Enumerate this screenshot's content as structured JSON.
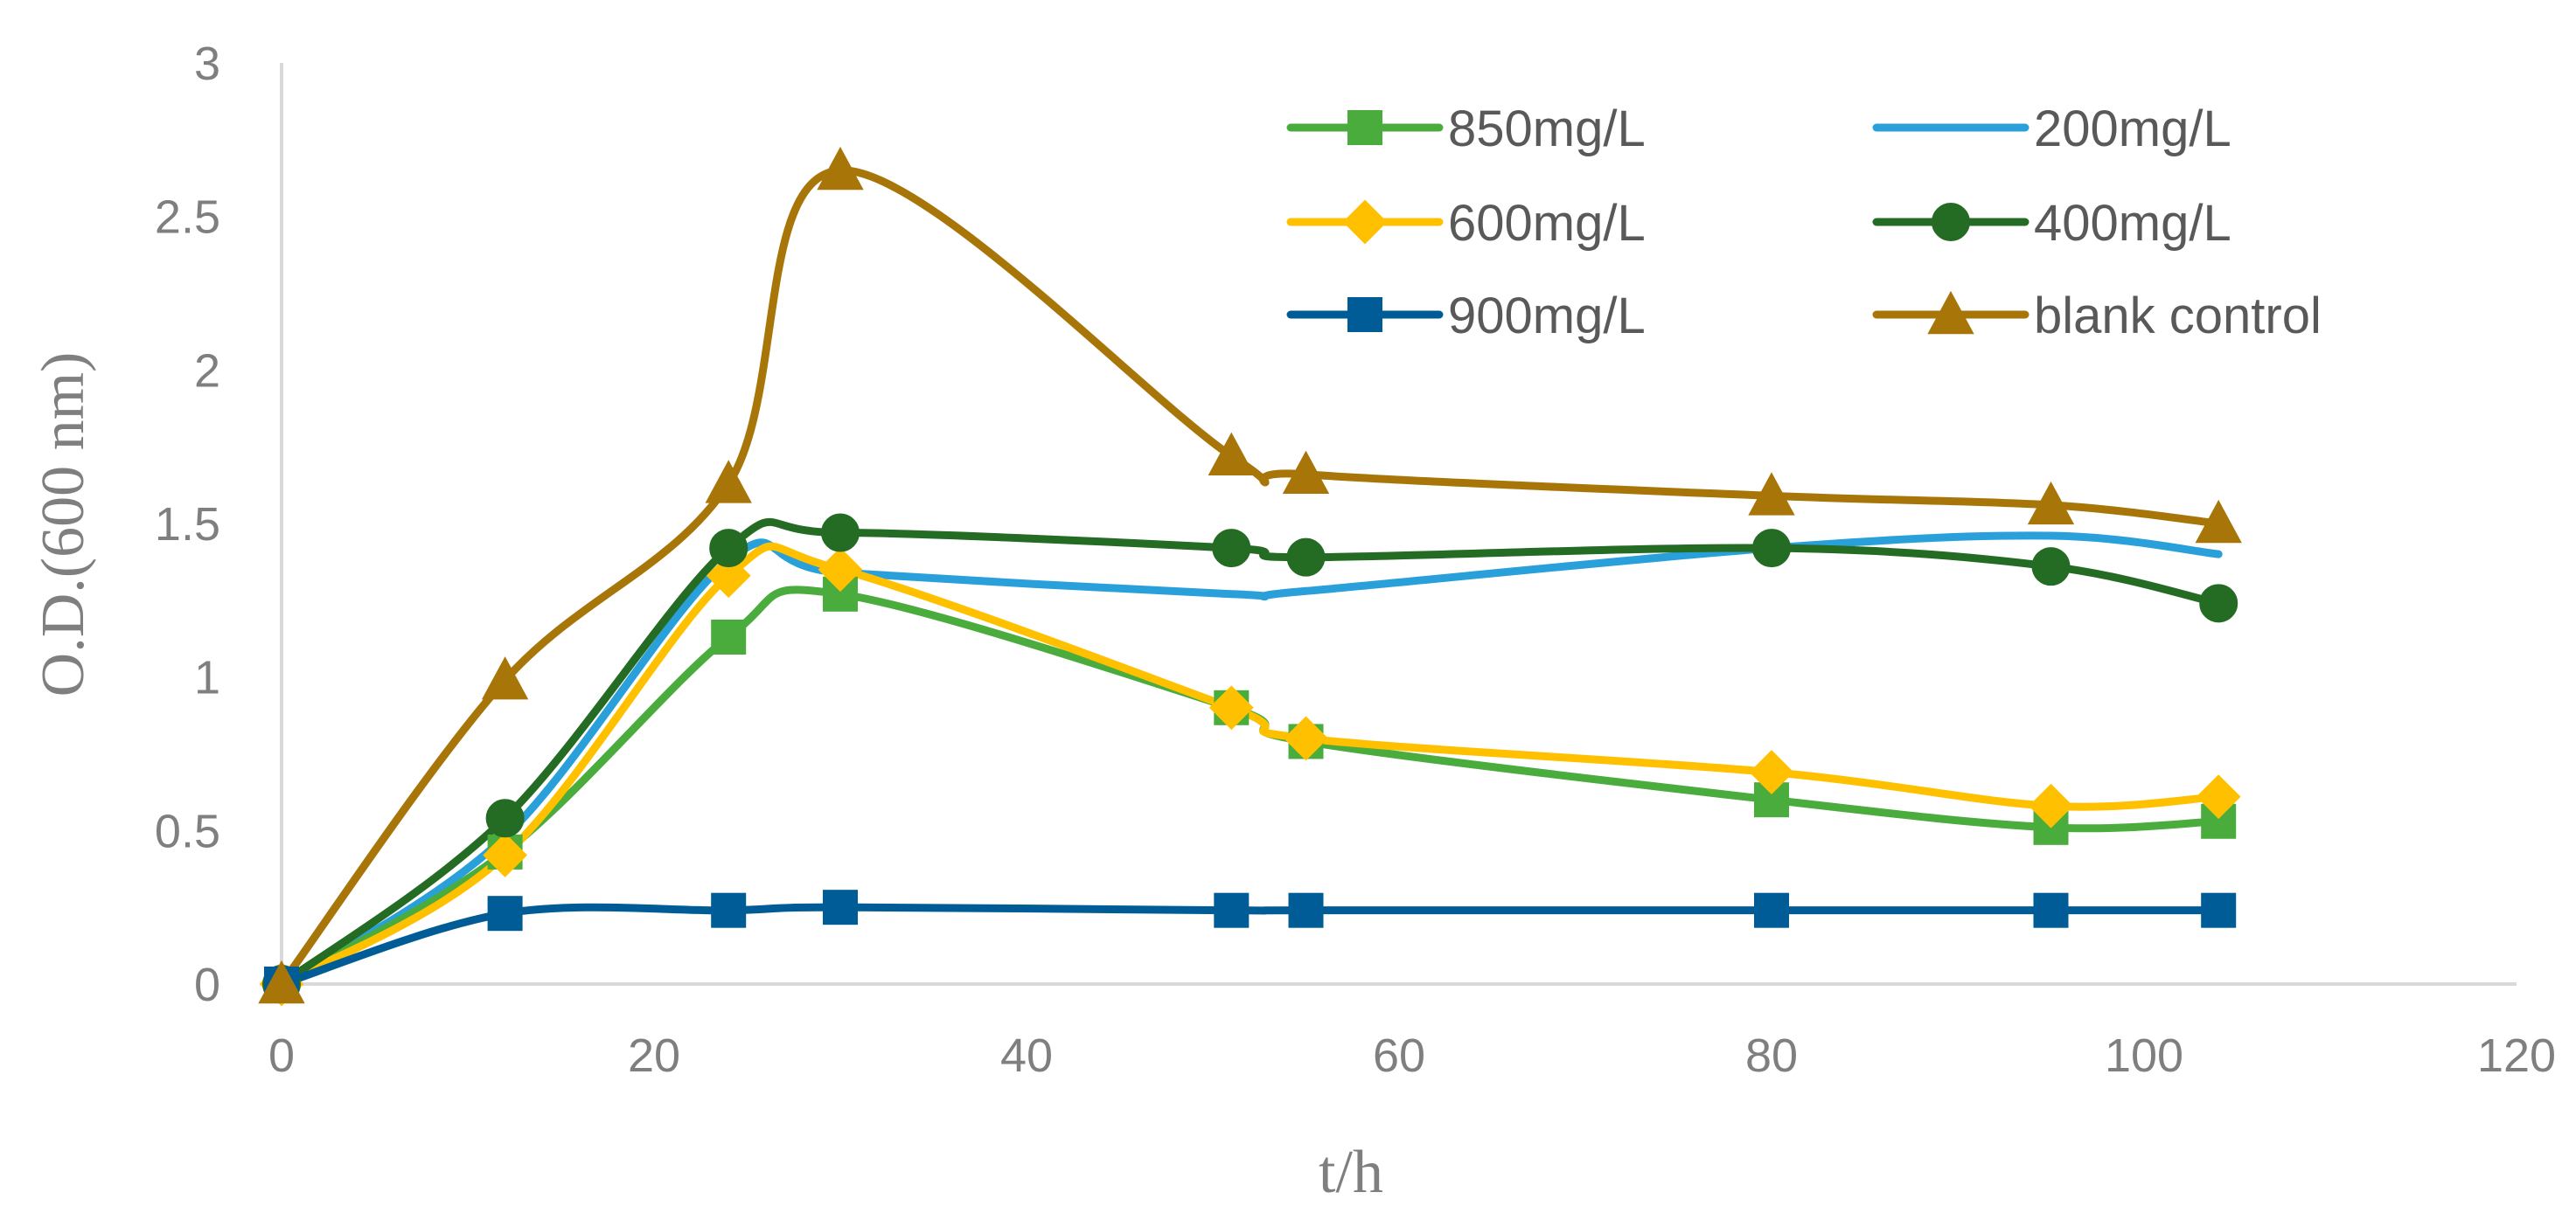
{
  "chart_data": {
    "type": "line",
    "title": "",
    "xlabel": "t/h",
    "ylabel": "O.D.(600 nm)",
    "xlim": [
      0,
      120
    ],
    "ylim": [
      0,
      3
    ],
    "x_ticks": [
      "0",
      "20",
      "40",
      "60",
      "80",
      "100",
      "120"
    ],
    "y_ticks": [
      "0",
      "0.5",
      "1",
      "1.5",
      "2",
      "2.5",
      "3"
    ],
    "grid": false,
    "legend_position": "top-right",
    "x": [
      0,
      12,
      24,
      30,
      51,
      55,
      80,
      95,
      104
    ],
    "series": [
      {
        "name": "850mg/L",
        "color": "#4aac3c",
        "marker": "square",
        "values": [
          0,
          0.43,
          1.13,
          1.27,
          0.9,
          0.79,
          0.6,
          0.51,
          0.53
        ]
      },
      {
        "name": "200mg/L",
        "color": "#29a0da",
        "marker": "none",
        "values": [
          0,
          0.48,
          1.38,
          1.34,
          1.27,
          1.28,
          1.42,
          1.46,
          1.4
        ]
      },
      {
        "name": "600mg/L",
        "color": "#ffc000",
        "marker": "diamond",
        "values": [
          0,
          0.42,
          1.33,
          1.35,
          0.9,
          0.8,
          0.69,
          0.58,
          0.61
        ]
      },
      {
        "name": "400mg/L",
        "color": "#246b24",
        "marker": "circle",
        "values": [
          0,
          0.54,
          1.42,
          1.47,
          1.42,
          1.39,
          1.42,
          1.36,
          1.24
        ]
      },
      {
        "name": "900mg/L",
        "color": "#005c96",
        "marker": "square",
        "values": [
          0,
          0.23,
          0.24,
          0.25,
          0.24,
          0.24,
          0.24,
          0.24,
          0.24
        ]
      },
      {
        "name": "blank control",
        "color": "#a87508",
        "marker": "triangle",
        "values": [
          0,
          0.99,
          1.63,
          2.65,
          1.72,
          1.66,
          1.59,
          1.56,
          1.5
        ]
      }
    ]
  }
}
